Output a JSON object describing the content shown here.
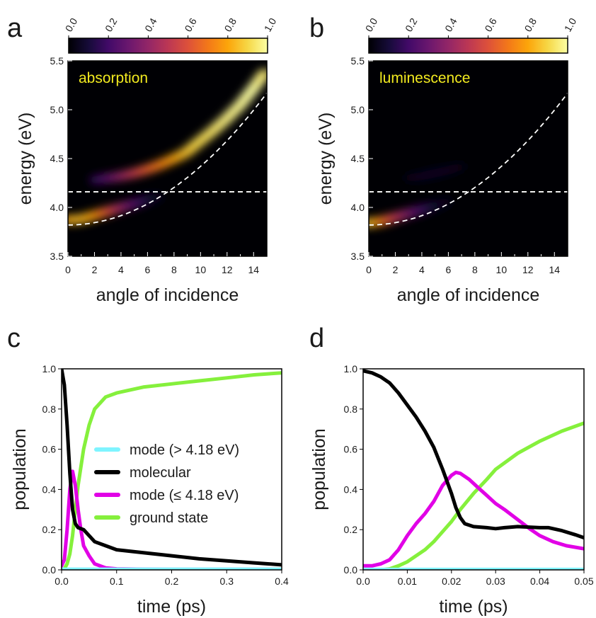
{
  "chart_data": [
    {
      "panel": "a",
      "type": "heatmap",
      "inset_label": "absorption",
      "xlabel": "angle of incidence",
      "ylabel": "energy (eV)",
      "xlim": [
        0,
        15
      ],
      "ylim": [
        3.5,
        5.5
      ],
      "x_ticks": [
        "0",
        "2",
        "4",
        "6",
        "8",
        "10",
        "12",
        "14"
      ],
      "y_ticks": [
        "3.5",
        "4.0",
        "4.5",
        "5.0",
        "5.5"
      ],
      "colorbar": {
        "range": [
          0.0,
          1.0
        ],
        "ticks": [
          "0.0",
          "0.2",
          "0.4",
          "0.6",
          "0.8",
          "1.0"
        ],
        "colormap": "inferno"
      },
      "reference_lines": {
        "molecular_energy_eV": 4.16,
        "cavity_mode": {
          "E0_eV": 3.82,
          "curvature": 0.006
        }
      },
      "branches": [
        {
          "name": "lower",
          "x": [
            0,
            1,
            2,
            3,
            4,
            5,
            6,
            6.8
          ],
          "y": [
            3.87,
            3.88,
            3.92,
            3.96,
            4.0,
            4.04,
            4.08,
            4.11
          ],
          "intensity": [
            0.8,
            0.85,
            0.8,
            0.65,
            0.45,
            0.28,
            0.14,
            0.06
          ]
        },
        {
          "name": "upper",
          "x": [
            2,
            3,
            4,
            5,
            6,
            7,
            8,
            8.9,
            9.8,
            10.9,
            11.9,
            13,
            14,
            14.8
          ],
          "y": [
            4.28,
            4.3,
            4.32,
            4.35,
            4.39,
            4.44,
            4.5,
            4.56,
            4.66,
            4.78,
            4.9,
            5.05,
            5.22,
            5.37
          ],
          "intensity": [
            0.15,
            0.25,
            0.38,
            0.5,
            0.62,
            0.7,
            0.78,
            0.85,
            0.9,
            0.93,
            0.96,
            0.98,
            1.0,
            0.95
          ]
        }
      ]
    },
    {
      "panel": "b",
      "type": "heatmap",
      "inset_label": "luminescence",
      "xlabel": "angle of incidence",
      "ylabel": "energy (eV)",
      "xlim": [
        0,
        15
      ],
      "ylim": [
        3.5,
        5.5
      ],
      "x_ticks": [
        "0",
        "2",
        "4",
        "6",
        "8",
        "10",
        "12",
        "14"
      ],
      "y_ticks": [
        "3.5",
        "4.0",
        "4.5",
        "5.0",
        "5.5"
      ],
      "colorbar": {
        "range": [
          0.0,
          1.0
        ],
        "ticks": [
          "0.0",
          "0.2",
          "0.4",
          "0.6",
          "0.8",
          "1.0"
        ],
        "colormap": "inferno"
      },
      "reference_lines": {
        "molecular_energy_eV": 4.16,
        "cavity_mode": {
          "E0_eV": 3.82,
          "curvature": 0.006
        }
      },
      "branches": [
        {
          "name": "lower",
          "x": [
            0,
            1,
            2,
            3,
            4,
            5,
            6
          ],
          "y": [
            3.84,
            3.86,
            3.9,
            3.94,
            3.98,
            4.02,
            4.06
          ],
          "intensity": [
            0.9,
            0.75,
            0.55,
            0.38,
            0.22,
            0.1,
            0.04
          ]
        },
        {
          "name": "upper",
          "x": [
            3,
            4,
            5,
            6,
            7
          ],
          "y": [
            4.3,
            4.32,
            4.35,
            4.38,
            4.42
          ],
          "intensity": [
            0.04,
            0.06,
            0.07,
            0.06,
            0.04
          ]
        }
      ]
    },
    {
      "panel": "c",
      "type": "line",
      "xlabel": "time (ps)",
      "ylabel": "population",
      "xlim": [
        0,
        0.4
      ],
      "ylim": [
        0,
        1.0
      ],
      "x_ticks": [
        "0.0",
        "0.1",
        "0.2",
        "0.3",
        "0.4"
      ],
      "y_ticks": [
        "0.0",
        "0.2",
        "0.4",
        "0.6",
        "0.8",
        "1.0"
      ],
      "legend": "center-right",
      "series": [
        {
          "name": "mode (> 4.18 eV)",
          "color": "#7ff4ff",
          "x": [
            0,
            0.4
          ],
          "y": [
            0.003,
            0.003
          ]
        },
        {
          "name": "molecular",
          "color": "#000000",
          "x": [
            0,
            0.005,
            0.01,
            0.015,
            0.02,
            0.025,
            0.03,
            0.04,
            0.05,
            0.06,
            0.08,
            0.1,
            0.15,
            0.2,
            0.25,
            0.3,
            0.35,
            0.4
          ],
          "y": [
            1.0,
            0.92,
            0.72,
            0.48,
            0.3,
            0.23,
            0.21,
            0.2,
            0.17,
            0.14,
            0.12,
            0.1,
            0.085,
            0.07,
            0.055,
            0.045,
            0.035,
            0.025
          ]
        },
        {
          "name": "mode (≤ 4.18 eV)",
          "color": "#e100e6",
          "x": [
            0,
            0.005,
            0.01,
            0.015,
            0.02,
            0.025,
            0.03,
            0.035,
            0.04,
            0.05,
            0.06,
            0.07,
            0.08,
            0.1,
            0.15,
            0.2,
            0.3,
            0.4
          ],
          "y": [
            0.02,
            0.05,
            0.2,
            0.4,
            0.49,
            0.42,
            0.3,
            0.2,
            0.12,
            0.07,
            0.03,
            0.02,
            0.01,
            0.005,
            0.003,
            0.002,
            0.002,
            0.002
          ]
        },
        {
          "name": "ground state",
          "color": "#85f03c",
          "x": [
            0,
            0.005,
            0.01,
            0.015,
            0.02,
            0.025,
            0.03,
            0.04,
            0.05,
            0.06,
            0.08,
            0.1,
            0.15,
            0.2,
            0.25,
            0.3,
            0.35,
            0.4
          ],
          "y": [
            0.0,
            0.005,
            0.03,
            0.08,
            0.17,
            0.3,
            0.42,
            0.6,
            0.72,
            0.8,
            0.86,
            0.88,
            0.91,
            0.925,
            0.94,
            0.955,
            0.97,
            0.98
          ]
        }
      ]
    },
    {
      "panel": "d",
      "type": "line",
      "xlabel": "time (ps)",
      "ylabel": "population",
      "xlim": [
        0,
        0.05
      ],
      "ylim": [
        0,
        1.0
      ],
      "x_ticks": [
        "0.0",
        "0.01",
        "0.02",
        "0.03",
        "0.04",
        "0.05"
      ],
      "y_ticks": [
        "0.0",
        "0.2",
        "0.4",
        "0.6",
        "0.8",
        "1.0"
      ],
      "series": [
        {
          "name": "mode (> 4.18 eV)",
          "color": "#7ff4ff",
          "x": [
            0,
            0.05
          ],
          "y": [
            0.002,
            0.002
          ]
        },
        {
          "name": "molecular",
          "color": "#000000",
          "x": [
            0,
            0.002,
            0.004,
            0.006,
            0.008,
            0.01,
            0.012,
            0.014,
            0.016,
            0.018,
            0.02,
            0.021,
            0.022,
            0.023,
            0.025,
            0.028,
            0.03,
            0.032,
            0.035,
            0.04,
            0.042,
            0.045,
            0.048,
            0.05
          ],
          "y": [
            0.99,
            0.98,
            0.96,
            0.93,
            0.88,
            0.82,
            0.76,
            0.69,
            0.61,
            0.5,
            0.38,
            0.31,
            0.26,
            0.23,
            0.215,
            0.21,
            0.205,
            0.21,
            0.215,
            0.21,
            0.21,
            0.195,
            0.175,
            0.16
          ]
        },
        {
          "name": "mode (≤ 4.18 eV)",
          "color": "#e100e6",
          "x": [
            0,
            0.002,
            0.004,
            0.006,
            0.008,
            0.01,
            0.012,
            0.014,
            0.016,
            0.018,
            0.02,
            0.021,
            0.022,
            0.024,
            0.026,
            0.028,
            0.03,
            0.032,
            0.035,
            0.038,
            0.04,
            0.043,
            0.046,
            0.05
          ],
          "y": [
            0.02,
            0.02,
            0.03,
            0.05,
            0.1,
            0.17,
            0.23,
            0.28,
            0.34,
            0.42,
            0.47,
            0.485,
            0.48,
            0.45,
            0.41,
            0.37,
            0.33,
            0.3,
            0.25,
            0.2,
            0.17,
            0.14,
            0.12,
            0.105
          ]
        },
        {
          "name": "ground state",
          "color": "#85f03c",
          "x": [
            0,
            0.004,
            0.006,
            0.008,
            0.01,
            0.012,
            0.014,
            0.016,
            0.018,
            0.02,
            0.022,
            0.025,
            0.028,
            0.03,
            0.035,
            0.04,
            0.045,
            0.05
          ],
          "y": [
            0.0,
            0.0,
            0.005,
            0.02,
            0.04,
            0.07,
            0.1,
            0.14,
            0.19,
            0.24,
            0.3,
            0.38,
            0.45,
            0.5,
            0.58,
            0.64,
            0.69,
            0.73
          ]
        }
      ]
    }
  ]
}
